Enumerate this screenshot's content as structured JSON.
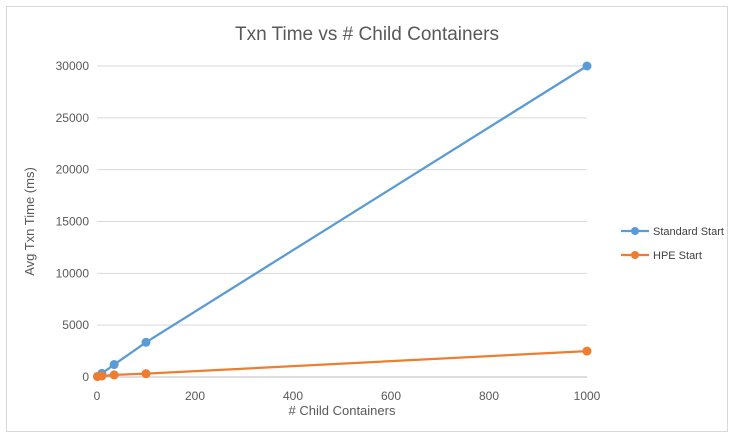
{
  "chart_data": {
    "type": "scatter",
    "title": "Txn Time vs # Child Containers",
    "xlabel": "# Child Containers",
    "ylabel": "Avg Txn Time (ms)",
    "xlim": [
      0,
      1000
    ],
    "ylim": [
      0,
      30000
    ],
    "x_ticks": [
      0,
      200,
      400,
      600,
      800,
      1000
    ],
    "y_ticks": [
      0,
      5000,
      10000,
      15000,
      20000,
      25000,
      30000
    ],
    "grid": "horizontal",
    "legend_position": "right",
    "series": [
      {
        "name": "Standard Start",
        "color": "#5b9bd5",
        "points": [
          {
            "x": 1,
            "y": 50
          },
          {
            "x": 10,
            "y": 350
          },
          {
            "x": 35,
            "y": 1200
          },
          {
            "x": 100,
            "y": 3350
          },
          {
            "x": 1000,
            "y": 30000
          }
        ]
      },
      {
        "name": "HPE Start",
        "color": "#ed7d31",
        "points": [
          {
            "x": 1,
            "y": 50
          },
          {
            "x": 10,
            "y": 100
          },
          {
            "x": 35,
            "y": 200
          },
          {
            "x": 100,
            "y": 320
          },
          {
            "x": 1000,
            "y": 2500
          }
        ]
      }
    ]
  }
}
